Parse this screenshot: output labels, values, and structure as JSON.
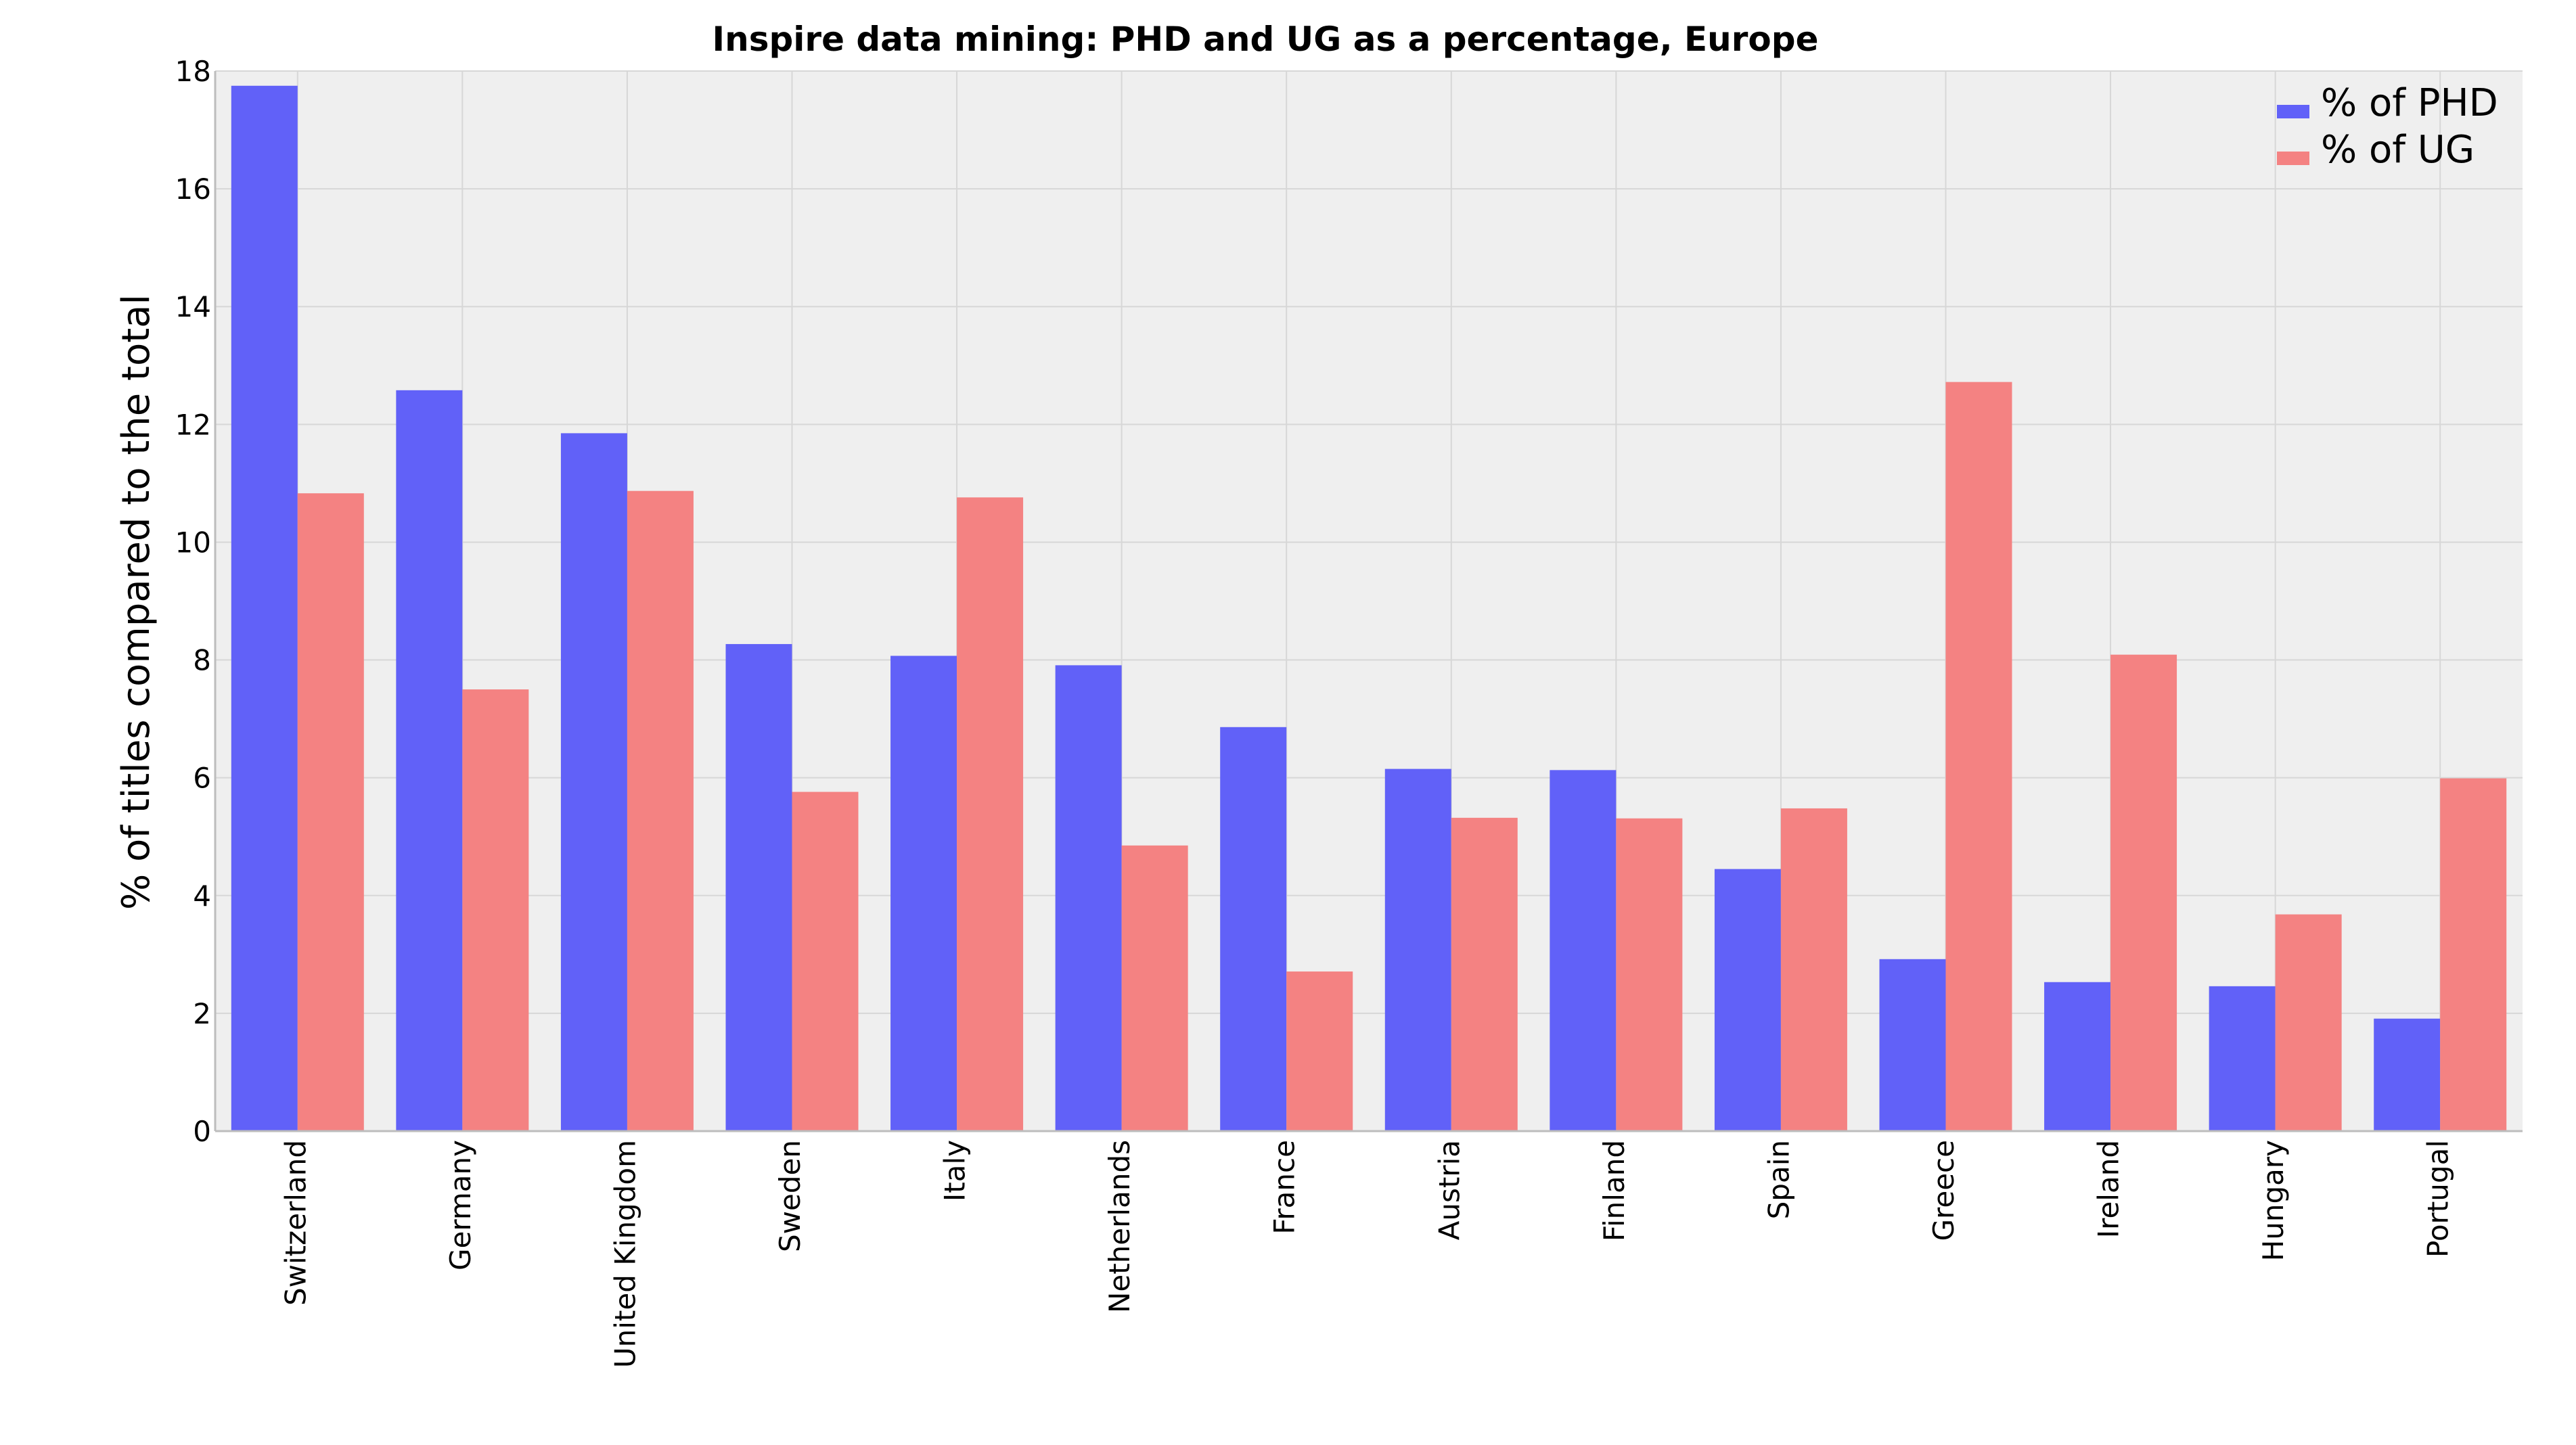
{
  "chart_data": {
    "type": "bar",
    "title": "Inspire data mining: PHD and UG as a percentage, Europe",
    "xlabel": "",
    "ylabel": "% of titles compared to the total",
    "ylim": [
      0,
      18
    ],
    "yticks": [
      0,
      2,
      4,
      6,
      8,
      10,
      12,
      14,
      16,
      18
    ],
    "grid": true,
    "legend_position": "top-right",
    "categories": [
      "Switzerland",
      "Germany",
      "United Kingdom",
      "Sweden",
      "Italy",
      "Netherlands",
      "France",
      "Austria",
      "Finland",
      "Spain",
      "Greece",
      "Ireland",
      "Hungary",
      "Portugal"
    ],
    "series": [
      {
        "name": "% of PHD",
        "color": "#6161f8",
        "values": [
          17.75,
          12.58,
          11.85,
          8.27,
          8.07,
          7.91,
          6.86,
          6.15,
          6.13,
          4.45,
          2.92,
          2.53,
          2.46,
          1.91
        ]
      },
      {
        "name": "% of UG",
        "color": "#f48282",
        "values": [
          10.83,
          7.5,
          10.87,
          5.76,
          10.76,
          4.85,
          2.71,
          5.32,
          5.31,
          5.48,
          12.72,
          8.09,
          3.68,
          5.99
        ]
      }
    ],
    "colors": {
      "plot_background": "#efefef",
      "grid": "#d7d7d7",
      "axis": "#bdbdbd",
      "text": "#000000"
    }
  }
}
